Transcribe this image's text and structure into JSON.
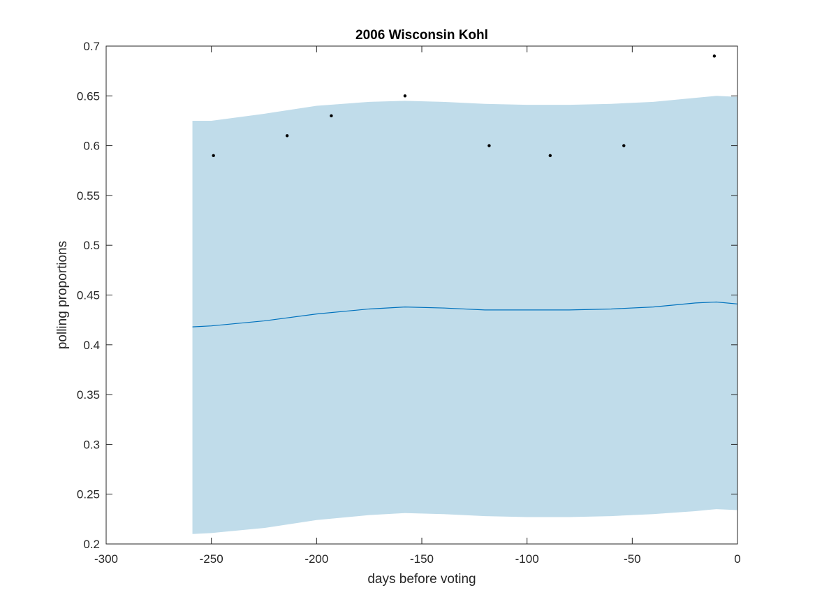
{
  "chart_data": {
    "type": "line",
    "title": "2006 Wisconsin Kohl",
    "xlabel": "days before voting",
    "ylabel": "polling proportions",
    "xlim": [
      -300,
      0
    ],
    "ylim": [
      0.2,
      0.7
    ],
    "xticks": [
      -300,
      -250,
      -200,
      -150,
      -100,
      -50,
      0
    ],
    "xtick_labels": [
      "-300",
      "-250",
      "-200",
      "-150",
      "-100",
      "-50",
      "0"
    ],
    "yticks": [
      0.2,
      0.25,
      0.3,
      0.35,
      0.4,
      0.45,
      0.5,
      0.55,
      0.6,
      0.65,
      0.7
    ],
    "ytick_labels": [
      "0.2",
      "0.25",
      "0.3",
      "0.35",
      "0.4",
      "0.45",
      "0.5",
      "0.55",
      "0.6",
      "0.65",
      "0.7"
    ],
    "grid": false,
    "band": {
      "x": [
        -259,
        -250,
        -225,
        -200,
        -175,
        -158,
        -140,
        -120,
        -100,
        -80,
        -60,
        -40,
        -20,
        -10,
        0
      ],
      "upper": [
        0.625,
        0.625,
        0.632,
        0.64,
        0.644,
        0.645,
        0.644,
        0.642,
        0.641,
        0.641,
        0.642,
        0.644,
        0.648,
        0.65,
        0.649
      ],
      "lower": [
        0.21,
        0.211,
        0.216,
        0.224,
        0.229,
        0.231,
        0.23,
        0.228,
        0.227,
        0.227,
        0.228,
        0.23,
        0.233,
        0.235,
        0.234
      ],
      "color": "#c0dcea"
    },
    "series": [
      {
        "type": "line",
        "x": [
          -259,
          -250,
          -225,
          -200,
          -175,
          -158,
          -140,
          -120,
          -100,
          -80,
          -60,
          -40,
          -20,
          -10,
          0
        ],
        "values": [
          0.418,
          0.419,
          0.424,
          0.431,
          0.436,
          0.438,
          0.437,
          0.435,
          0.435,
          0.435,
          0.436,
          0.438,
          0.442,
          0.443,
          0.441
        ],
        "color": "#0072bd"
      },
      {
        "type": "scatter",
        "x": [
          -249,
          -214,
          -193,
          -158,
          -118,
          -89,
          -54,
          -11
        ],
        "values": [
          0.59,
          0.61,
          0.63,
          0.65,
          0.6,
          0.59,
          0.6,
          0.69
        ],
        "color": "#000000"
      }
    ]
  }
}
